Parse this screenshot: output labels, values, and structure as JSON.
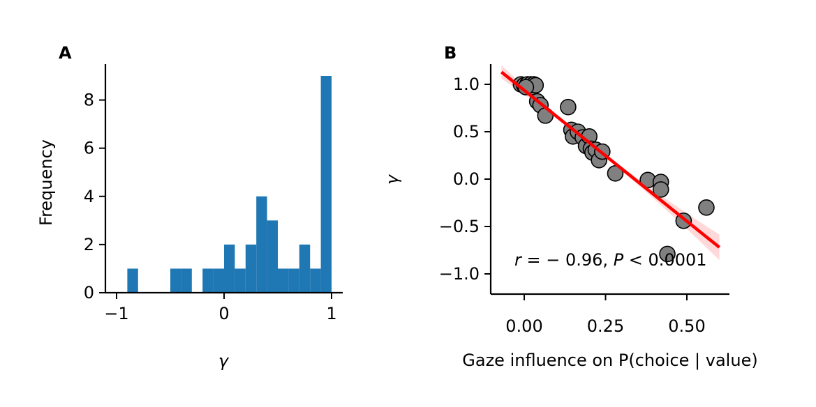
{
  "panels": [
    {
      "letter": "A"
    },
    {
      "letter": "B"
    }
  ],
  "chart_data": [
    {
      "type": "bar",
      "subtype": "histogram",
      "xlabel": "γ",
      "ylabel": "Frequency",
      "xlim": [
        -1.1,
        1.1
      ],
      "ylim": [
        0,
        9.4
      ],
      "xticks": [
        -1,
        0,
        1
      ],
      "xtick_labels": [
        "−1",
        "0",
        "1"
      ],
      "yticks": [
        0,
        2,
        4,
        6,
        8
      ],
      "ytick_labels": [
        "0",
        "2",
        "4",
        "6",
        "8"
      ],
      "bin_width": 0.1,
      "bins": [
        {
          "x0": -0.9,
          "x1": -0.8,
          "count": 1
        },
        {
          "x0": -0.8,
          "x1": -0.7,
          "count": 0
        },
        {
          "x0": -0.7,
          "x1": -0.6,
          "count": 0
        },
        {
          "x0": -0.6,
          "x1": -0.5,
          "count": 0
        },
        {
          "x0": -0.5,
          "x1": -0.4,
          "count": 1
        },
        {
          "x0": -0.4,
          "x1": -0.3,
          "count": 1
        },
        {
          "x0": -0.3,
          "x1": -0.2,
          "count": 0
        },
        {
          "x0": -0.2,
          "x1": -0.1,
          "count": 1
        },
        {
          "x0": -0.1,
          "x1": 0.0,
          "count": 1
        },
        {
          "x0": 0.0,
          "x1": 0.1,
          "count": 2
        },
        {
          "x0": 0.1,
          "x1": 0.2,
          "count": 1
        },
        {
          "x0": 0.2,
          "x1": 0.3,
          "count": 2
        },
        {
          "x0": 0.3,
          "x1": 0.4,
          "count": 4
        },
        {
          "x0": 0.4,
          "x1": 0.5,
          "count": 3
        },
        {
          "x0": 0.5,
          "x1": 0.6,
          "count": 1
        },
        {
          "x0": 0.6,
          "x1": 0.7,
          "count": 1
        },
        {
          "x0": 0.7,
          "x1": 0.8,
          "count": 2
        },
        {
          "x0": 0.8,
          "x1": 0.9,
          "count": 1
        },
        {
          "x0": 0.9,
          "x1": 1.0,
          "count": 9
        }
      ],
      "bar_color": "#1f77b4"
    },
    {
      "type": "scatter",
      "xlabel": "Gaze influence on P(choice | value)",
      "ylabel": "γ",
      "xlim": [
        -0.09,
        0.63
      ],
      "ylim": [
        -1.2,
        1.2
      ],
      "xticks": [
        0.0,
        0.25,
        0.5
      ],
      "xtick_labels": [
        "0.00",
        "0.25",
        "0.50"
      ],
      "yticks": [
        1.0,
        0.5,
        0.0,
        -0.5,
        -1.0
      ],
      "ytick_labels": [
        "1.0",
        "0.5",
        "0.0",
        "−0.5",
        "−1.0"
      ],
      "points": [
        {
          "x": -0.01,
          "y": 1.0
        },
        {
          "x": 0.0,
          "y": 0.99
        },
        {
          "x": 0.01,
          "y": 1.0
        },
        {
          "x": 0.015,
          "y": 0.98
        },
        {
          "x": 0.02,
          "y": 1.0
        },
        {
          "x": 0.025,
          "y": 0.97
        },
        {
          "x": 0.03,
          "y": 1.0
        },
        {
          "x": 0.035,
          "y": 0.99
        },
        {
          "x": 0.005,
          "y": 0.97
        },
        {
          "x": 0.04,
          "y": 0.82
        },
        {
          "x": 0.05,
          "y": 0.78
        },
        {
          "x": 0.065,
          "y": 0.67
        },
        {
          "x": 0.135,
          "y": 0.76
        },
        {
          "x": 0.145,
          "y": 0.52
        },
        {
          "x": 0.15,
          "y": 0.45
        },
        {
          "x": 0.165,
          "y": 0.5
        },
        {
          "x": 0.18,
          "y": 0.44
        },
        {
          "x": 0.19,
          "y": 0.35
        },
        {
          "x": 0.2,
          "y": 0.45
        },
        {
          "x": 0.205,
          "y": 0.32
        },
        {
          "x": 0.21,
          "y": 0.28
        },
        {
          "x": 0.22,
          "y": 0.31
        },
        {
          "x": 0.23,
          "y": 0.2
        },
        {
          "x": 0.24,
          "y": 0.29
        },
        {
          "x": 0.28,
          "y": 0.06
        },
        {
          "x": 0.38,
          "y": -0.01
        },
        {
          "x": 0.42,
          "y": -0.03
        },
        {
          "x": 0.42,
          "y": -0.11
        },
        {
          "x": 0.44,
          "y": -0.79
        },
        {
          "x": 0.49,
          "y": -0.44
        },
        {
          "x": 0.56,
          "y": -0.3
        }
      ],
      "point_color": "#808080",
      "point_edge_color": "#000000",
      "fit_line": {
        "x": [
          -0.07,
          0.6
        ],
        "y": [
          1.13,
          -0.72
        ],
        "color": "#ff0000"
      },
      "annotation": {
        "r_label": "r",
        "r_value": " = − 0.96, ",
        "p_label": "P",
        "p_value": " < 0.0001"
      }
    }
  ]
}
